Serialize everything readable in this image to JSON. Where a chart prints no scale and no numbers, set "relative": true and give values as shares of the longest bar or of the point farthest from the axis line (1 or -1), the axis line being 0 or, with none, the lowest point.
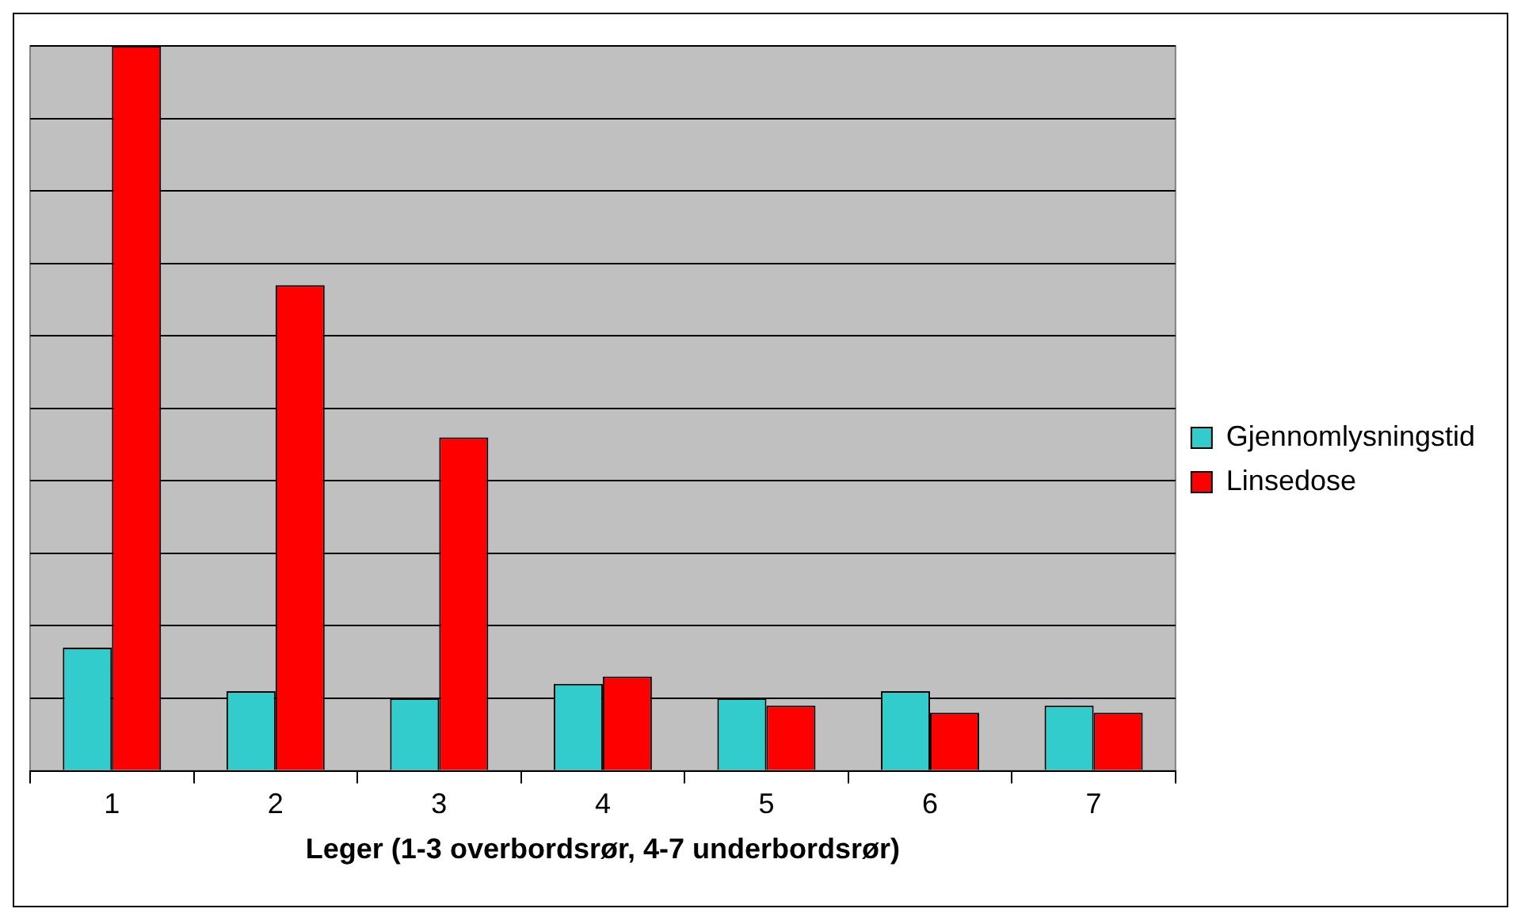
{
  "chart_data": {
    "type": "bar",
    "xlabel": "Leger (1-3 overbordsrør, 4-7 underbordsrør)",
    "categories": [
      "1",
      "2",
      "3",
      "4",
      "5",
      "6",
      "7"
    ],
    "relative": true,
    "grid": "y",
    "legend": "right",
    "series": [
      {
        "name": "Gjennomlysningstid",
        "color": "#33cccc",
        "values": [
          0.17,
          0.11,
          0.1,
          0.12,
          0.1,
          0.11,
          0.09
        ]
      },
      {
        "name": "Linsedose",
        "color": "#ff0000",
        "values": [
          1,
          0.67,
          0.46,
          0.13,
          0.09,
          0.08,
          0.08
        ]
      }
    ]
  }
}
